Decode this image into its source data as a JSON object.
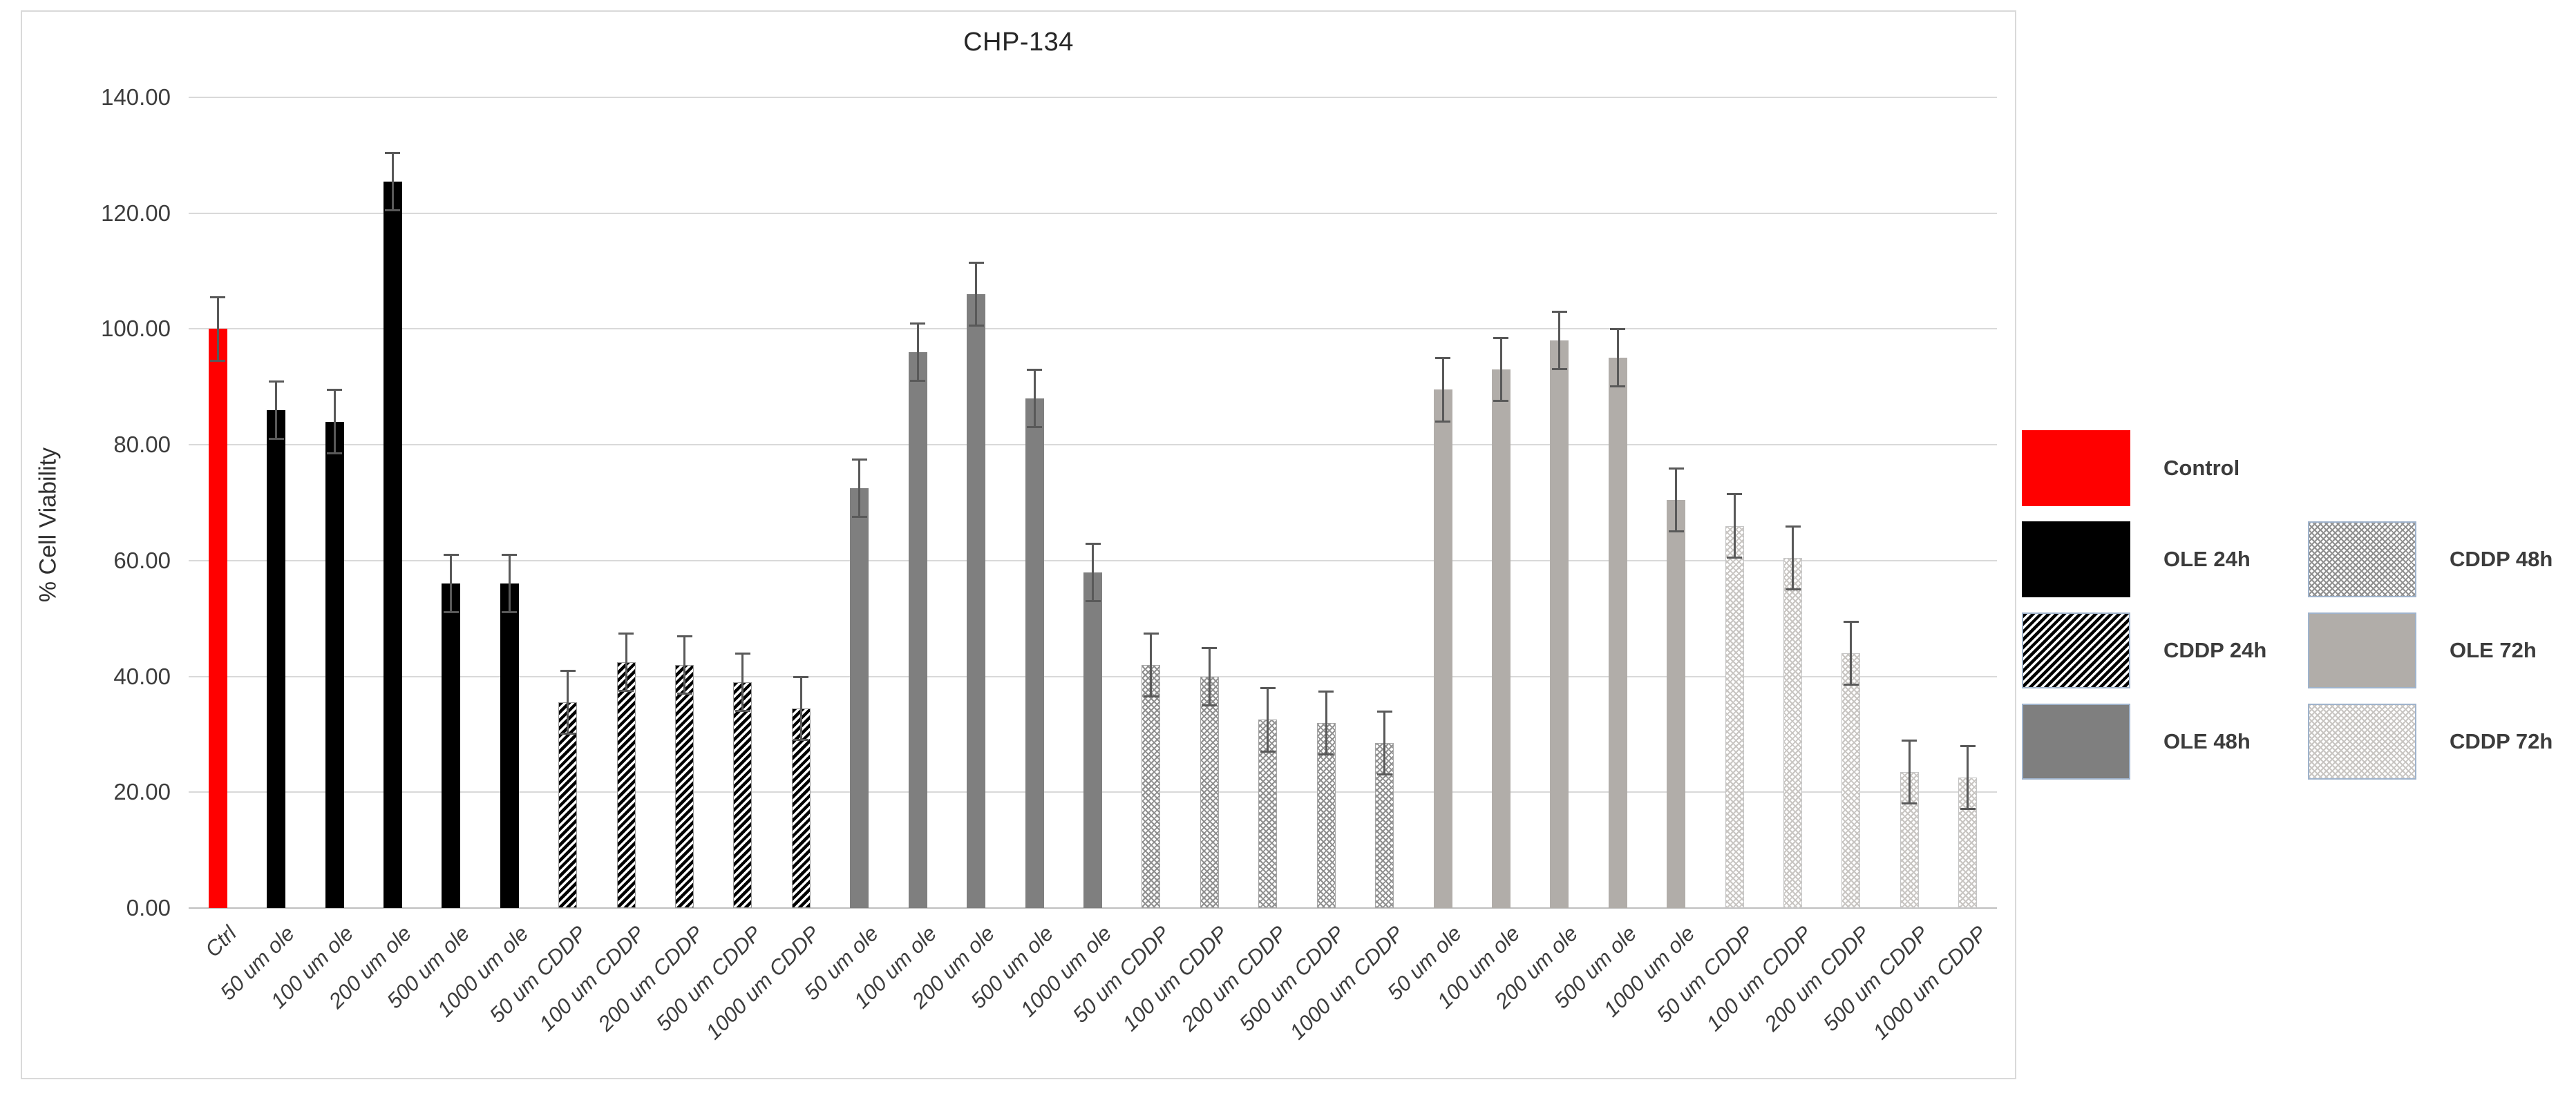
{
  "chart_data": {
    "type": "bar",
    "title": "CHP-134",
    "xlabel": "",
    "ylabel": "% Cell Viability",
    "ylim": [
      0,
      140
    ],
    "ytick_step": 20,
    "ytick_labels": [
      "0.00",
      "20.00",
      "40.00",
      "60.00",
      "80.00",
      "100.00",
      "120.00",
      "140.00"
    ],
    "grid": true,
    "legend_position": "right-outside",
    "error_bar_color": "#595959",
    "gridline_color": "#d9d9d9",
    "baseline_color": "#bfbfbf",
    "series_styles": [
      {
        "name": "Control",
        "style": "solid",
        "color": "#ff0000",
        "bg": "#ffffff",
        "border": ""
      },
      {
        "name": "OLE 24h",
        "style": "solid",
        "color": "#000000",
        "bg": "#ffffff",
        "border": ""
      },
      {
        "name": "CDDP 24h",
        "style": "diagonal-hatch",
        "color": "#000000",
        "bg": "#ffffff",
        "border": "#9a9a9a"
      },
      {
        "name": "OLE 48h",
        "style": "solid",
        "color": "#7f7f7f",
        "bg": "#ffffff",
        "border": ""
      },
      {
        "name": "CDDP 48h",
        "style": "cross-hatch",
        "color": "#8f8f8f",
        "bg": "#ffffff",
        "border": "#a5a5a5"
      },
      {
        "name": "OLE 72h",
        "style": "solid",
        "color": "#b1ada9",
        "bg": "#ffffff",
        "border": ""
      },
      {
        "name": "CDDP 72h",
        "style": "cross-hatch",
        "color": "#c8c5c2",
        "bg": "#ffffff",
        "border": "#c5c5c5"
      }
    ],
    "legend_columns": [
      [
        "Control",
        "OLE 24h",
        "CDDP 24h",
        "OLE 48h"
      ],
      [
        "CDDP 48h",
        "OLE 72h",
        "CDDP 72h"
      ]
    ],
    "legend_swatch_border": "#9fb3cc",
    "bars": [
      {
        "label": "Ctrl",
        "series": "Control",
        "value": 100.0,
        "error": 5.5
      },
      {
        "label": "50 um ole",
        "series": "OLE 24h",
        "value": 86.0,
        "error": 5.0
      },
      {
        "label": "100 um ole",
        "series": "OLE 24h",
        "value": 84.0,
        "error": 5.5
      },
      {
        "label": "200 um ole",
        "series": "OLE 24h",
        "value": 125.5,
        "error": 5.0
      },
      {
        "label": "500 um ole",
        "series": "OLE 24h",
        "value": 56.0,
        "error": 5.0
      },
      {
        "label": "1000 um ole",
        "series": "OLE 24h",
        "value": 56.0,
        "error": 5.0
      },
      {
        "label": "50 um CDDP",
        "series": "CDDP 24h",
        "value": 35.5,
        "error": 5.5
      },
      {
        "label": "100 um CDDP",
        "series": "CDDP 24h",
        "value": 42.5,
        "error": 5.0
      },
      {
        "label": "200 um CDDP",
        "series": "CDDP 24h",
        "value": 42.0,
        "error": 5.0
      },
      {
        "label": "500 um CDDP",
        "series": "CDDP 24h",
        "value": 39.0,
        "error": 5.0
      },
      {
        "label": "1000 um CDDP",
        "series": "CDDP 24h",
        "value": 34.5,
        "error": 5.5
      },
      {
        "label": "50 um ole",
        "series": "OLE 48h",
        "value": 72.5,
        "error": 5.0
      },
      {
        "label": "100 um ole",
        "series": "OLE 48h",
        "value": 96.0,
        "error": 5.0
      },
      {
        "label": "200 um ole",
        "series": "OLE 48h",
        "value": 106.0,
        "error": 5.5
      },
      {
        "label": "500 um ole",
        "series": "OLE 48h",
        "value": 88.0,
        "error": 5.0
      },
      {
        "label": "1000 um ole",
        "series": "OLE 48h",
        "value": 58.0,
        "error": 5.0
      },
      {
        "label": "50 um CDDP",
        "series": "CDDP 48h",
        "value": 42.0,
        "error": 5.5
      },
      {
        "label": "100 um CDDP",
        "series": "CDDP 48h",
        "value": 40.0,
        "error": 5.0
      },
      {
        "label": "200 um CDDP",
        "series": "CDDP 48h",
        "value": 32.5,
        "error": 5.5
      },
      {
        "label": "500 um CDDP",
        "series": "CDDP 48h",
        "value": 32.0,
        "error": 5.5
      },
      {
        "label": "1000 um CDDP",
        "series": "CDDP 48h",
        "value": 28.5,
        "error": 5.5
      },
      {
        "label": "50 um ole",
        "series": "OLE 72h",
        "value": 89.5,
        "error": 5.5
      },
      {
        "label": "100 um ole",
        "series": "OLE 72h",
        "value": 93.0,
        "error": 5.5
      },
      {
        "label": "200 um ole",
        "series": "OLE 72h",
        "value": 98.0,
        "error": 5.0
      },
      {
        "label": "500 um ole",
        "series": "OLE 72h",
        "value": 95.0,
        "error": 5.0
      },
      {
        "label": "1000 um ole",
        "series": "OLE 72h",
        "value": 70.5,
        "error": 5.5
      },
      {
        "label": "50 um CDDP",
        "series": "CDDP 72h",
        "value": 66.0,
        "error": 5.5
      },
      {
        "label": "100 um CDDP",
        "series": "CDDP 72h",
        "value": 60.5,
        "error": 5.5
      },
      {
        "label": "200 um CDDP",
        "series": "CDDP 72h",
        "value": 44.0,
        "error": 5.5
      },
      {
        "label": "500 um CDDP",
        "series": "CDDP 72h",
        "value": 23.5,
        "error": 5.5
      },
      {
        "label": "1000 um CDDP",
        "series": "CDDP 72h",
        "value": 22.5,
        "error": 5.5
      }
    ]
  }
}
